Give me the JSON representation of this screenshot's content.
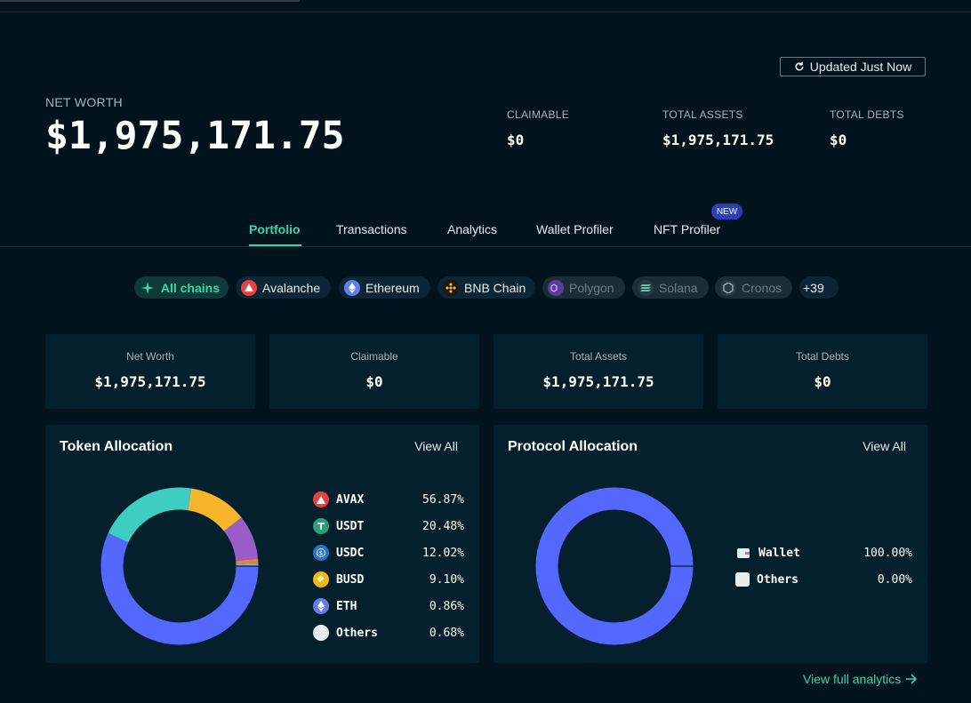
{
  "header": {
    "updated_label": "Updated Just Now",
    "net_worth_label": "NET WORTH",
    "net_worth_value": "$1,975,171.75",
    "stats": [
      {
        "label": "CLAIMABLE",
        "value": "$0"
      },
      {
        "label": "TOTAL ASSETS",
        "value": "$1,975,171.75"
      },
      {
        "label": "TOTAL DEBTS",
        "value": "$0"
      }
    ]
  },
  "tabs": [
    {
      "label": "Portfolio",
      "active": true
    },
    {
      "label": "Transactions"
    },
    {
      "label": "Analytics"
    },
    {
      "label": "Wallet Profiler"
    },
    {
      "label": "NFT Profiler"
    }
  ],
  "new_badge": "NEW",
  "chains": [
    {
      "label": "All chains",
      "icon": "sparkle-icon",
      "color": "#3fd4a8"
    },
    {
      "label": "Avalanche",
      "icon": "avalanche-icon",
      "color": "#e84142"
    },
    {
      "label": "Ethereum",
      "icon": "ethereum-icon",
      "color": "#627eea"
    },
    {
      "label": "BNB Chain",
      "icon": "bnb-icon",
      "color": "#f3ba2f"
    },
    {
      "label": "Polygon",
      "icon": "polygon-icon",
      "color": "#8247e5"
    },
    {
      "label": "Solana",
      "icon": "solana-icon",
      "color": "#14f195"
    },
    {
      "label": "Cronos",
      "icon": "cronos-icon",
      "color": "#8a9aa4"
    },
    {
      "label": "+39"
    }
  ],
  "cards": [
    {
      "label": "Net Worth",
      "value": "$1,975,171.75"
    },
    {
      "label": "Claimable",
      "value": "$0"
    },
    {
      "label": "Total Assets",
      "value": "$1,975,171.75"
    },
    {
      "label": "Total Debts",
      "value": "$0"
    }
  ],
  "token_allocation": {
    "title": "Token Allocation",
    "view_all": "View All",
    "items": [
      {
        "name": "AVAX",
        "pct": "56.87%",
        "value": 56.87,
        "color": "#5468ff",
        "icon": "avax-icon"
      },
      {
        "name": "USDT",
        "pct": "20.48%",
        "value": 20.48,
        "color": "#3ecdc1",
        "icon": "usdt-icon"
      },
      {
        "name": "USDC",
        "pct": "12.02%",
        "value": 12.02,
        "color": "#f7b52c",
        "icon": "usdc-icon"
      },
      {
        "name": "BUSD",
        "pct": "9.10%",
        "value": 9.1,
        "color": "#9a5cc6",
        "icon": "busd-icon"
      },
      {
        "name": "ETH",
        "pct": "0.86%",
        "value": 0.86,
        "color": "#ee7b3a",
        "icon": "eth-icon"
      },
      {
        "name": "Others",
        "pct": "0.68%",
        "value": 0.68,
        "color": "#9aa6ad",
        "icon": "others-icon"
      }
    ]
  },
  "protocol_allocation": {
    "title": "Protocol Allocation",
    "view_all": "View All",
    "items": [
      {
        "name": "Wallet",
        "pct": "100.00%",
        "value": 100.0,
        "color": "#5468ff",
        "icon": "wallet-icon"
      },
      {
        "name": "Others",
        "pct": "0.00%",
        "value": 0.0,
        "color": "#e8edf0",
        "icon": "others-icon"
      }
    ]
  },
  "footer": {
    "view_full_analytics": "View full analytics"
  }
}
